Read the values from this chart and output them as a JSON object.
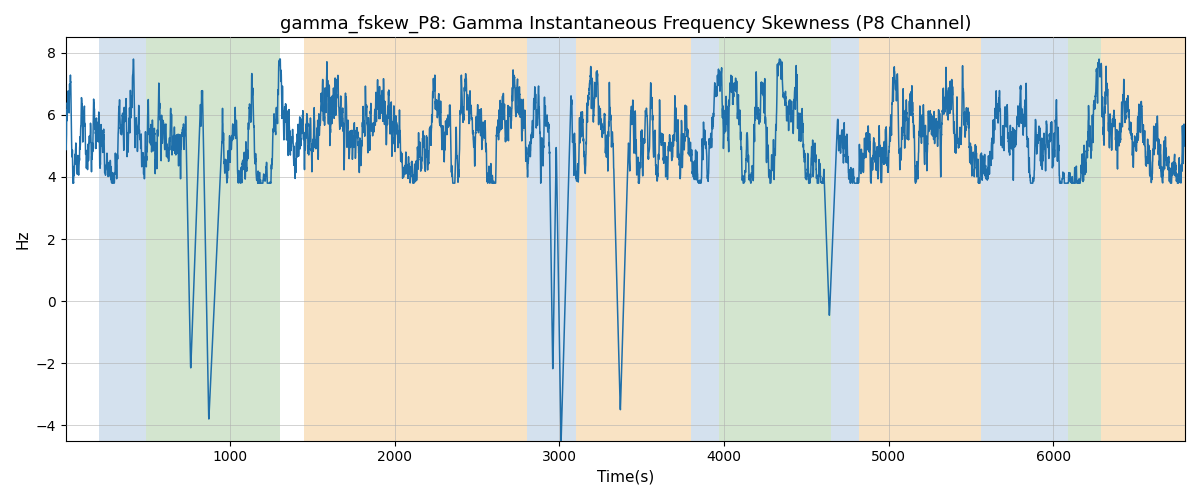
{
  "title": "gamma_fskew_P8: Gamma Instantaneous Frequency Skewness (P8 Channel)",
  "xlabel": "Time(s)",
  "ylabel": "Hz",
  "xlim": [
    0,
    6800
  ],
  "ylim": [
    -4.5,
    8.5
  ],
  "yticks": [
    -4,
    -2,
    0,
    2,
    4,
    6,
    8
  ],
  "xticks": [
    1000,
    2000,
    3000,
    4000,
    5000,
    6000
  ],
  "line_color": "#1f6faa",
  "line_width": 1.1,
  "bands": [
    {
      "start": 200,
      "end": 490,
      "color": "#aac5de",
      "alpha": 0.5
    },
    {
      "start": 490,
      "end": 1300,
      "color": "#a8cca0",
      "alpha": 0.5
    },
    {
      "start": 1450,
      "end": 2800,
      "color": "#f5c98a",
      "alpha": 0.5
    },
    {
      "start": 2800,
      "end": 3100,
      "color": "#aac5de",
      "alpha": 0.5
    },
    {
      "start": 3100,
      "end": 3800,
      "color": "#f5c98a",
      "alpha": 0.5
    },
    {
      "start": 3800,
      "end": 3970,
      "color": "#aac5de",
      "alpha": 0.5
    },
    {
      "start": 3970,
      "end": 4650,
      "color": "#a8cca0",
      "alpha": 0.5
    },
    {
      "start": 4650,
      "end": 4820,
      "color": "#aac5de",
      "alpha": 0.5
    },
    {
      "start": 4820,
      "end": 5560,
      "color": "#f5c98a",
      "alpha": 0.5
    },
    {
      "start": 5560,
      "end": 6090,
      "color": "#aac5de",
      "alpha": 0.5
    },
    {
      "start": 6090,
      "end": 6290,
      "color": "#a8cca0",
      "alpha": 0.5
    },
    {
      "start": 6290,
      "end": 6800,
      "color": "#f5c98a",
      "alpha": 0.5
    }
  ],
  "title_fontsize": 13,
  "label_fontsize": 11,
  "tick_fontsize": 10
}
